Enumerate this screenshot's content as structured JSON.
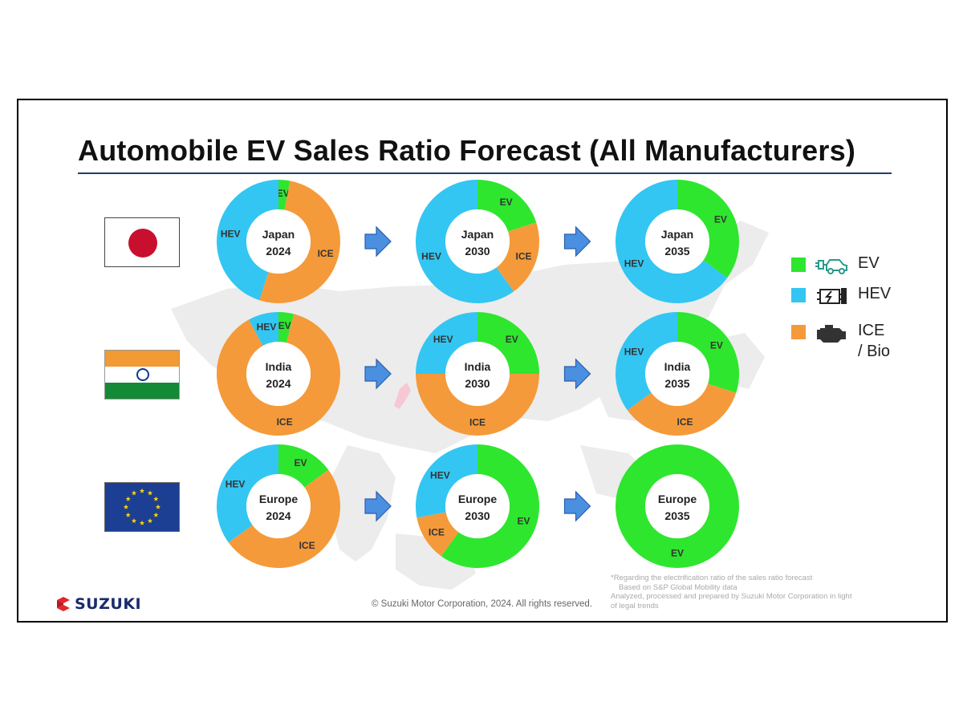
{
  "page": {
    "title": "Automobile EV Sales Ratio Forecast (All Manufacturers)",
    "logo_text": "SUZUKI",
    "copyright": "© Suzuki Motor Corporation, 2024. All rights reserved.",
    "footnote": [
      "*Regarding the electrification ratio of the sales ratio forecast",
      "Based on S&P Global Mobility data",
      "Analyzed, processed and prepared by Suzuki Motor Corporation in light",
      "of legal trends"
    ]
  },
  "flags": [
    {
      "country": "Japan",
      "icon": "japan-flag-icon"
    },
    {
      "country": "India",
      "icon": "india-flag-icon"
    },
    {
      "country": "Europe",
      "icon": "eu-flag-icon"
    }
  ],
  "legend": [
    {
      "label": "EV",
      "color": "#2ee62e",
      "icon": "ev-car-plug-icon"
    },
    {
      "label": "HEV",
      "color": "#33c6f2",
      "icon": "hybrid-engine-icon"
    },
    {
      "label": "ICE\n/ Bio",
      "color": "#f59a3a",
      "icon": "engine-icon"
    }
  ],
  "colors": {
    "EV": "#2ee62e",
    "HEV": "#33c6f2",
    "ICE": "#f59a3a",
    "arrow": "#4a8fe0"
  },
  "chart_data": {
    "type": "pie",
    "variant": "donut",
    "series_order": [
      "EV",
      "ICE",
      "HEV"
    ],
    "charts": [
      {
        "region": "Japan",
        "year": "2024",
        "values": {
          "EV": 3,
          "ICE": 52,
          "HEV": 45
        },
        "labels": [
          "EV",
          "ICE",
          "HEV"
        ]
      },
      {
        "region": "Japan",
        "year": "2030",
        "values": {
          "EV": 20,
          "ICE": 20,
          "HEV": 60
        },
        "labels": [
          "EV",
          "ICE",
          "HEV"
        ]
      },
      {
        "region": "Japan",
        "year": "2035",
        "values": {
          "EV": 35,
          "ICE": 0,
          "HEV": 65
        },
        "labels": [
          "EV",
          "HEV"
        ]
      },
      {
        "region": "India",
        "year": "2024",
        "values": {
          "EV": 4,
          "ICE": 88,
          "HEV": 8
        },
        "labels": [
          "EV",
          "ICE",
          "HEV"
        ]
      },
      {
        "region": "India",
        "year": "2030",
        "values": {
          "EV": 25,
          "ICE": 50,
          "HEV": 25
        },
        "labels": [
          "EV",
          "ICE",
          "HEV"
        ]
      },
      {
        "region": "India",
        "year": "2035",
        "values": {
          "EV": 30,
          "ICE": 35,
          "HEV": 35
        },
        "labels": [
          "EV",
          "ICE",
          "HEV"
        ]
      },
      {
        "region": "Europe",
        "year": "2024",
        "values": {
          "EV": 15,
          "ICE": 50,
          "HEV": 35
        },
        "labels": [
          "EV",
          "ICE",
          "HEV"
        ]
      },
      {
        "region": "Europe",
        "year": "2030",
        "values": {
          "EV": 60,
          "ICE": 12,
          "HEV": 28
        },
        "labels": [
          "EV",
          "ICE",
          "HEV"
        ]
      },
      {
        "region": "Europe",
        "year": "2035",
        "values": {
          "EV": 100,
          "ICE": 0,
          "HEV": 0
        },
        "labels": [
          "EV"
        ]
      }
    ]
  }
}
